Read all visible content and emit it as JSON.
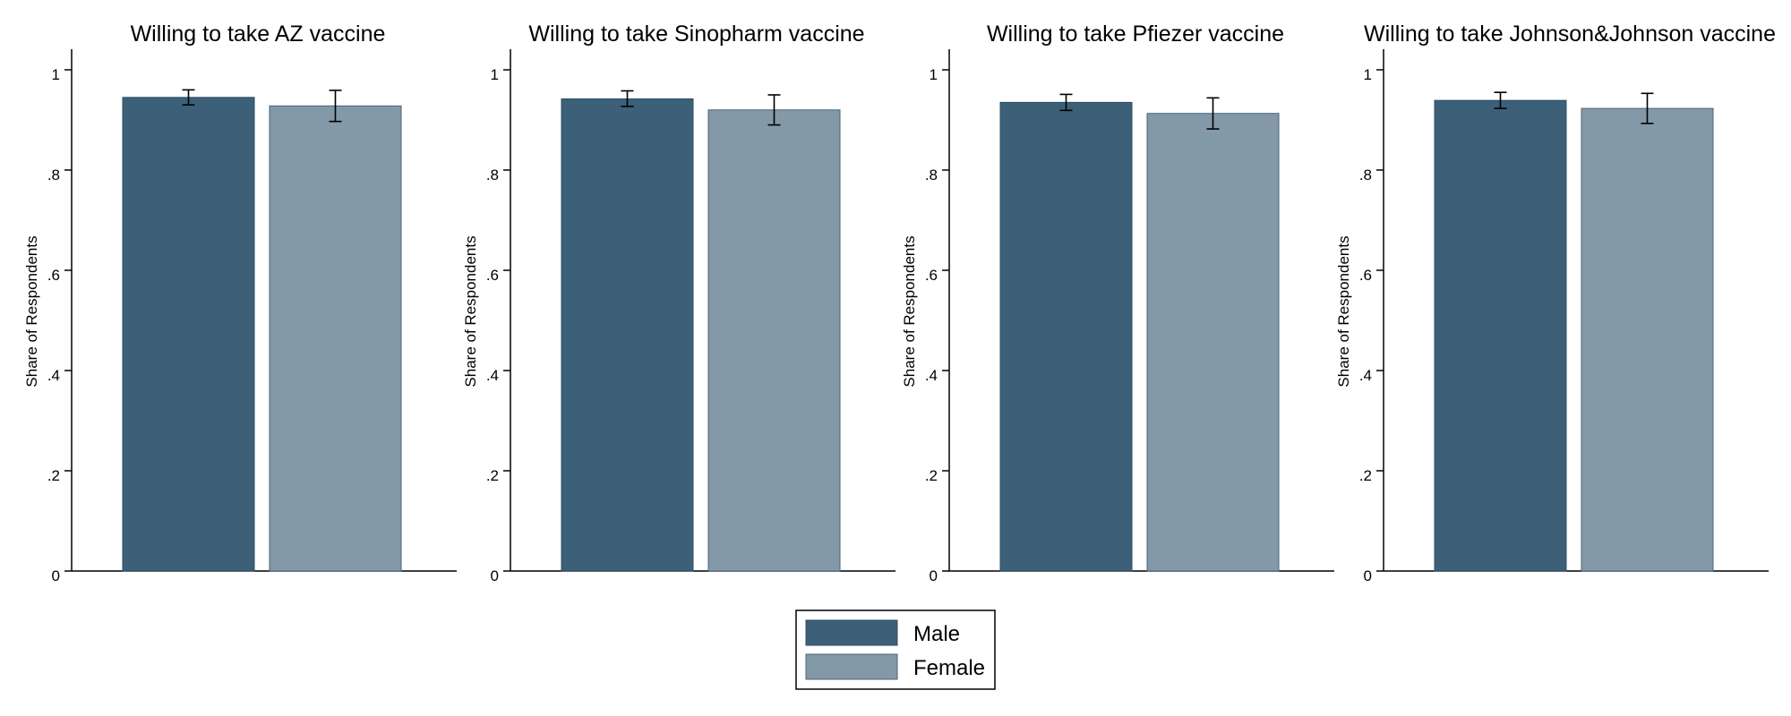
{
  "colors": {
    "male": "#3d6079",
    "male_stroke": "#2f4d62",
    "female": "#8399a8",
    "female_stroke": "#4a6478",
    "axis": "#000000"
  },
  "legend": {
    "placement": "bottom-center",
    "items": [
      {
        "label": "Male",
        "color": "#3d6079"
      },
      {
        "label": "Female",
        "color": "#8399a8"
      }
    ]
  },
  "chart_data": [
    {
      "type": "bar",
      "title": "Willing to take AZ vaccine",
      "xlabel": "",
      "ylabel": "Share of Respondents",
      "ylim": [
        0,
        1
      ],
      "yticks": [
        "0",
        ".2",
        ".4",
        ".6",
        ".8",
        "1"
      ],
      "categories": [
        "Male",
        "Female"
      ],
      "values": [
        0.945,
        0.928
      ],
      "error_low": [
        0.93,
        0.897
      ],
      "error_high": [
        0.96,
        0.959
      ]
    },
    {
      "type": "bar",
      "title": "Willing to take Sinopharm vaccine",
      "xlabel": "",
      "ylabel": "Share of Respondents",
      "ylim": [
        0,
        1
      ],
      "yticks": [
        "0",
        ".2",
        ".4",
        ".6",
        ".8",
        "1"
      ],
      "categories": [
        "Male",
        "Female"
      ],
      "values": [
        0.942,
        0.92
      ],
      "error_low": [
        0.927,
        0.89
      ],
      "error_high": [
        0.958,
        0.95
      ]
    },
    {
      "type": "bar",
      "title": "Willing to take Pfiezer vaccine",
      "xlabel": "",
      "ylabel": "Share of Respondents",
      "ylim": [
        0,
        1
      ],
      "yticks": [
        "0",
        ".2",
        ".4",
        ".6",
        ".8",
        "1"
      ],
      "categories": [
        "Male",
        "Female"
      ],
      "values": [
        0.935,
        0.913
      ],
      "error_low": [
        0.919,
        0.882
      ],
      "error_high": [
        0.951,
        0.944
      ]
    },
    {
      "type": "bar",
      "title": "Willing to take Johnson&Johnson vaccine",
      "xlabel": "",
      "ylabel": "Share of Respondents",
      "ylim": [
        0,
        1
      ],
      "yticks": [
        "0",
        ".2",
        ".4",
        ".6",
        ".8",
        "1"
      ],
      "categories": [
        "Male",
        "Female"
      ],
      "values": [
        0.939,
        0.923
      ],
      "error_low": [
        0.923,
        0.893
      ],
      "error_high": [
        0.955,
        0.953
      ]
    }
  ]
}
